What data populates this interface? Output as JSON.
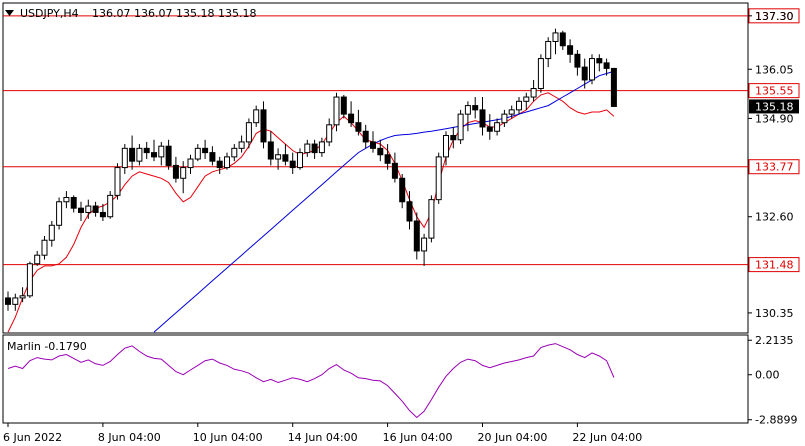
{
  "header": {
    "symbol_label": "USDJPY,H4",
    "ohlc_text": "136.07 136.07 135.18 135.18"
  },
  "indicator": {
    "label": "Marlin -0.1790"
  },
  "colors": {
    "bull_candle": "#ffffff",
    "bear_candle": "#000000",
    "ma_fast": "#e8000b",
    "ma_slow": "#0000e0",
    "level_line": "#e00000",
    "oscillator": "#9a00b4"
  },
  "chart_data": [
    {
      "type": "candlestick",
      "y_ticks": [
        "137.30",
        "136.05",
        "134.90",
        "132.60",
        "130.35"
      ],
      "x_ticks": [
        "6 Jun 2022",
        "8 Jun 04:00",
        "10 Jun 04:00",
        "14 Jun 04:00",
        "16 Jun 04:00",
        "20 Jun 04:00",
        "22 Jun 04:00"
      ],
      "ylim": [
        129.88,
        137.6
      ],
      "levels": [
        {
          "value": 137.3,
          "label": "137.30"
        },
        {
          "value": 135.55,
          "label": "135.55"
        },
        {
          "value": 133.77,
          "label": "133.77"
        },
        {
          "value": 131.48,
          "label": "131.48"
        }
      ],
      "current_price": {
        "value": 135.18,
        "label": "135.18"
      },
      "candles": [
        [
          130.7,
          130.85,
          130.4,
          130.55
        ],
        [
          130.55,
          130.8,
          130.4,
          130.7
        ],
        [
          130.7,
          130.95,
          130.6,
          130.75
        ],
        [
          130.75,
          131.55,
          130.7,
          131.5
        ],
        [
          131.5,
          131.8,
          131.45,
          131.7
        ],
        [
          131.7,
          132.15,
          131.6,
          132.05
        ],
        [
          132.05,
          132.5,
          131.9,
          132.4
        ],
        [
          132.4,
          133.05,
          132.3,
          132.95
        ],
        [
          132.95,
          133.2,
          132.8,
          133.05
        ],
        [
          133.05,
          133.1,
          132.7,
          132.8
        ],
        [
          132.8,
          132.95,
          132.5,
          132.7
        ],
        [
          132.7,
          133.0,
          132.55,
          132.85
        ],
        [
          132.85,
          132.95,
          132.6,
          132.7
        ],
        [
          132.7,
          132.9,
          132.5,
          132.6
        ],
        [
          132.6,
          133.2,
          132.55,
          133.1
        ],
        [
          133.1,
          133.85,
          133.0,
          133.75
        ],
        [
          133.75,
          134.3,
          133.6,
          134.2
        ],
        [
          134.2,
          134.5,
          133.7,
          133.9
        ],
        [
          133.9,
          134.3,
          133.8,
          134.2
        ],
        [
          134.2,
          134.35,
          133.95,
          134.1
        ],
        [
          134.1,
          134.4,
          133.9,
          134.0
        ],
        [
          134.0,
          134.35,
          133.8,
          134.25
        ],
        [
          134.25,
          134.4,
          133.7,
          133.8
        ],
        [
          133.8,
          134.0,
          133.4,
          133.5
        ],
        [
          133.5,
          133.9,
          133.15,
          133.75
        ],
        [
          133.75,
          134.05,
          133.6,
          133.95
        ],
        [
          133.95,
          134.3,
          133.9,
          134.2
        ],
        [
          134.2,
          134.4,
          133.95,
          134.1
        ],
        [
          134.1,
          134.25,
          133.8,
          133.9
        ],
        [
          133.9,
          134.0,
          133.6,
          133.75
        ],
        [
          133.75,
          134.1,
          133.7,
          134.0
        ],
        [
          134.0,
          134.3,
          133.9,
          134.2
        ],
        [
          134.2,
          134.5,
          134.1,
          134.35
        ],
        [
          134.35,
          134.9,
          134.2,
          134.8
        ],
        [
          134.8,
          135.2,
          134.7,
          135.1
        ],
        [
          135.1,
          135.3,
          134.2,
          134.35
        ],
        [
          134.35,
          134.6,
          133.8,
          133.95
        ],
        [
          133.95,
          134.2,
          133.7,
          134.05
        ],
        [
          134.05,
          134.3,
          133.8,
          133.9
        ],
        [
          133.9,
          134.1,
          133.6,
          133.75
        ],
        [
          133.75,
          134.2,
          133.7,
          134.1
        ],
        [
          134.1,
          134.4,
          134.0,
          134.3
        ],
        [
          134.3,
          134.4,
          133.95,
          134.1
        ],
        [
          134.1,
          134.45,
          134.0,
          134.35
        ],
        [
          134.35,
          134.9,
          134.25,
          134.75
        ],
        [
          134.75,
          135.5,
          134.6,
          135.4
        ],
        [
          135.4,
          135.45,
          134.9,
          135.0
        ],
        [
          135.0,
          135.3,
          134.7,
          134.8
        ],
        [
          134.8,
          135.1,
          134.5,
          134.6
        ],
        [
          134.6,
          134.75,
          134.2,
          134.35
        ],
        [
          134.35,
          134.6,
          134.1,
          134.2
        ],
        [
          134.2,
          134.4,
          133.9,
          134.05
        ],
        [
          134.05,
          134.3,
          133.7,
          133.85
        ],
        [
          133.85,
          134.1,
          133.4,
          133.5
        ],
        [
          133.5,
          133.6,
          132.8,
          132.95
        ],
        [
          132.95,
          133.2,
          132.3,
          132.5
        ],
        [
          132.5,
          132.7,
          131.6,
          131.8
        ],
        [
          131.8,
          132.2,
          131.45,
          132.1
        ],
        [
          132.1,
          133.1,
          132.0,
          133.0
        ],
        [
          133.0,
          134.1,
          132.9,
          134.0
        ],
        [
          134.0,
          134.6,
          133.8,
          134.5
        ],
        [
          134.5,
          134.7,
          134.2,
          134.4
        ],
        [
          134.4,
          135.1,
          134.3,
          135.0
        ],
        [
          135.0,
          135.3,
          134.6,
          135.2
        ],
        [
          135.2,
          135.4,
          134.9,
          135.1
        ],
        [
          135.1,
          135.4,
          134.5,
          134.7
        ],
        [
          134.7,
          135.0,
          134.4,
          134.6
        ],
        [
          134.6,
          134.9,
          134.5,
          134.8
        ],
        [
          134.8,
          135.1,
          134.7,
          135.0
        ],
        [
          135.0,
          135.2,
          134.9,
          135.1
        ],
        [
          135.1,
          135.4,
          135.0,
          135.3
        ],
        [
          135.3,
          135.5,
          135.1,
          135.4
        ],
        [
          135.4,
          135.8,
          135.3,
          135.6
        ],
        [
          135.6,
          136.4,
          135.5,
          136.3
        ],
        [
          136.3,
          136.8,
          136.1,
          136.7
        ],
        [
          136.7,
          137.0,
          136.4,
          136.9
        ],
        [
          136.9,
          136.95,
          136.5,
          136.6
        ],
        [
          136.6,
          136.75,
          136.2,
          136.4
        ],
        [
          136.4,
          136.5,
          135.9,
          136.1
        ],
        [
          136.1,
          136.3,
          135.6,
          135.8
        ],
        [
          135.8,
          136.4,
          135.7,
          136.3
        ],
        [
          136.3,
          136.4,
          136.0,
          136.2
        ],
        [
          136.2,
          136.3,
          135.9,
          136.07
        ],
        [
          136.07,
          136.07,
          135.18,
          135.18
        ]
      ],
      "series": [
        {
          "values": [
            129.9,
            130.25,
            130.7,
            131.1,
            131.35,
            131.45,
            131.45,
            131.5,
            131.65,
            131.95,
            132.35,
            132.65,
            132.8,
            132.85,
            132.95,
            133.1,
            133.35,
            133.55,
            133.65,
            133.6,
            133.55,
            133.5,
            133.4,
            133.15,
            132.95,
            133.05,
            133.3,
            133.55,
            133.65,
            133.7,
            133.75,
            133.85,
            134.0,
            134.25,
            134.55,
            134.65,
            134.6,
            134.45,
            134.3,
            134.15,
            134.05,
            134.1,
            134.15,
            134.3,
            134.55,
            134.8,
            134.95,
            134.8,
            134.6,
            134.4,
            134.35,
            134.3,
            134.15,
            133.85,
            133.45,
            133.0,
            132.6,
            132.35,
            132.7,
            133.4,
            134.0,
            134.4,
            134.65,
            134.8,
            134.85,
            134.8,
            134.7,
            134.7,
            134.8,
            134.9,
            135.0,
            135.1,
            135.3,
            135.45,
            135.5,
            135.4,
            135.3,
            135.15,
            135.05,
            135.0,
            135.05,
            135.05,
            135.1,
            134.95
          ]
        },
        {
          "values": [
            null,
            null,
            null,
            null,
            null,
            null,
            null,
            null,
            null,
            null,
            null,
            null,
            null,
            null,
            null,
            null,
            null,
            null,
            null,
            null,
            129.9,
            130.05,
            130.2,
            130.35,
            130.5,
            130.65,
            130.8,
            130.95,
            131.1,
            131.25,
            131.4,
            131.55,
            131.7,
            131.85,
            132.0,
            132.15,
            132.3,
            132.45,
            132.6,
            132.75,
            132.9,
            133.05,
            133.2,
            133.35,
            133.5,
            133.65,
            133.8,
            133.95,
            134.1,
            134.2,
            134.3,
            134.38,
            134.45,
            134.5,
            134.52,
            134.53,
            134.55,
            134.58,
            134.6,
            134.63,
            134.66,
            134.69,
            134.72,
            134.75,
            134.78,
            134.81,
            134.84,
            134.87,
            134.9,
            134.95,
            135.0,
            135.05,
            135.1,
            135.15,
            135.2,
            135.3,
            135.4,
            135.5,
            135.6,
            135.7,
            135.8,
            135.9,
            135.95,
            136.0
          ]
        }
      ]
    },
    {
      "type": "line",
      "y_ticks": [
        "2.2135",
        "0.00",
        "-2.8899"
      ],
      "ylim": [
        -3.1,
        2.55
      ],
      "values": [
        0.4,
        0.55,
        0.4,
        0.9,
        1.1,
        1.0,
        0.95,
        1.2,
        1.3,
        1.05,
        0.8,
        0.95,
        0.7,
        0.6,
        0.85,
        1.3,
        1.7,
        1.85,
        1.5,
        1.2,
        1.05,
        1.0,
        0.6,
        0.2,
        0.0,
        0.3,
        0.6,
        0.9,
        1.0,
        0.75,
        0.6,
        0.35,
        0.25,
        0.1,
        -0.2,
        -0.45,
        -0.3,
        -0.5,
        -0.35,
        -0.2,
        -0.3,
        -0.45,
        -0.25,
        0.0,
        0.4,
        0.65,
        0.3,
        0.1,
        -0.2,
        -0.25,
        -0.35,
        -0.4,
        -0.7,
        -1.2,
        -1.7,
        -2.3,
        -2.75,
        -2.35,
        -1.6,
        -0.8,
        -0.1,
        0.4,
        0.8,
        1.0,
        0.9,
        0.6,
        0.45,
        0.6,
        0.75,
        0.85,
        0.95,
        1.1,
        1.2,
        1.75,
        1.9,
        2.0,
        1.8,
        1.6,
        1.3,
        1.1,
        1.4,
        1.2,
        0.9,
        -0.179
      ]
    }
  ]
}
